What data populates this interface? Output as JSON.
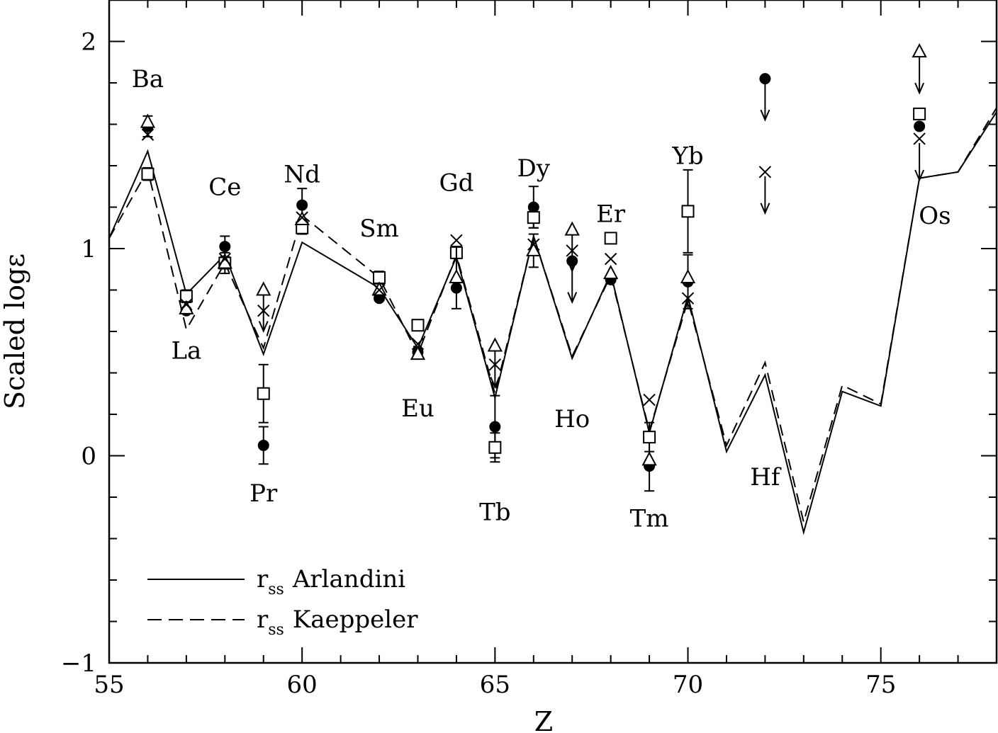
{
  "chart_data": {
    "type": "line",
    "title": "",
    "xlabel": "Z",
    "ylabel": "Scaled logε",
    "xlim": [
      55,
      78
    ],
    "ylim": [
      -1,
      2.2
    ],
    "x_ticks": [
      55,
      60,
      65,
      70,
      75
    ],
    "y_ticks": [
      -1,
      0,
      1,
      2
    ],
    "x_tick_labels": [
      "55",
      "60",
      "65",
      "70",
      "75"
    ],
    "y_tick_labels": [
      "−1",
      "0",
      "1",
      "2"
    ],
    "grid": false,
    "legend": {
      "position": "bottom-left",
      "entries": [
        {
          "main": "r",
          "sub": "ss",
          "text": "Arlandini",
          "style": "solid"
        },
        {
          "main": "r",
          "sub": "ss",
          "text": "Kaeppeler",
          "style": "dashed"
        }
      ]
    },
    "lines": [
      {
        "name": "r_ss Arlandini",
        "style": "solid",
        "x": [
          55,
          56,
          57,
          58,
          59,
          60,
          62,
          63,
          64,
          65,
          66,
          67,
          68,
          69,
          70,
          71,
          72,
          73,
          74,
          75,
          76,
          77,
          78
        ],
        "y": [
          1.05,
          1.47,
          0.78,
          0.97,
          0.49,
          1.03,
          0.81,
          0.52,
          0.96,
          0.28,
          1.06,
          0.47,
          0.88,
          0.11,
          0.77,
          0.02,
          0.39,
          -0.37,
          0.31,
          0.24,
          1.34,
          1.37,
          1.66
        ]
      },
      {
        "name": "r_ss Kaeppeler",
        "style": "dashed",
        "x": [
          55,
          56,
          57,
          58,
          59,
          60,
          62,
          63,
          64,
          65,
          66,
          67,
          68,
          69,
          70,
          71,
          72,
          73,
          74,
          75,
          76,
          77,
          78
        ],
        "y": [
          1.05,
          1.38,
          0.61,
          0.93,
          0.52,
          1.16,
          0.86,
          0.49,
          0.97,
          0.3,
          1.06,
          0.48,
          0.87,
          0.12,
          0.75,
          0.05,
          0.45,
          -0.32,
          0.34,
          0.25,
          1.34,
          1.37,
          1.68
        ]
      }
    ],
    "points": {
      "filled_circle": [
        {
          "x": 56,
          "y": 1.59,
          "err": 0.05
        },
        {
          "x": 57,
          "y": 0.7
        },
        {
          "x": 58,
          "y": 1.01,
          "err": 0.05
        },
        {
          "x": 59,
          "y": 0.05,
          "err": 0.09
        },
        {
          "x": 60,
          "y": 1.21,
          "err": 0.08
        },
        {
          "x": 62,
          "y": 0.76
        },
        {
          "x": 63,
          "y": 0.5
        },
        {
          "x": 64,
          "y": 0.81
        },
        {
          "x": 65,
          "y": 0.14,
          "err": 0.15
        },
        {
          "x": 66,
          "y": 1.2,
          "err": 0.1
        },
        {
          "x": 67,
          "y": 0.94,
          "upper_limit": true
        },
        {
          "x": 68,
          "y": 0.85
        },
        {
          "x": 69,
          "y": -0.05,
          "err": 0.12
        },
        {
          "x": 70,
          "y": 0.84,
          "err": 0.13
        },
        {
          "x": 72,
          "y": 1.82,
          "upper_limit": true
        },
        {
          "x": 76,
          "y": 1.59
        }
      ],
      "open_square": [
        {
          "x": 56,
          "y": 1.36,
          "err": 0.03
        },
        {
          "x": 57,
          "y": 0.77,
          "err": 0.03
        },
        {
          "x": 58,
          "y": 0.93,
          "err": 0.05
        },
        {
          "x": 59,
          "y": 0.3,
          "err": 0.14
        },
        {
          "x": 60,
          "y": 1.1,
          "err": 0.03
        },
        {
          "x": 62,
          "y": 0.86,
          "err": 0.03
        },
        {
          "x": 63,
          "y": 0.63,
          "err": 0.02
        },
        {
          "x": 64,
          "y": 0.98,
          "err": 0.02
        },
        {
          "x": 65,
          "y": 0.04,
          "err": 0.07
        },
        {
          "x": 66,
          "y": 1.15,
          "err": 0.05
        },
        {
          "x": 68,
          "y": 1.05,
          "err": 0.02
        },
        {
          "x": 69,
          "y": 0.09,
          "err": 0.07
        },
        {
          "x": 70,
          "y": 1.18,
          "err": 0.2
        },
        {
          "x": 76,
          "y": 1.65
        }
      ],
      "open_triangle": [
        {
          "x": 56,
          "y": 1.61
        },
        {
          "x": 57,
          "y": 0.71
        },
        {
          "x": 58,
          "y": 0.93
        },
        {
          "x": 59,
          "y": 0.8,
          "upper_limit": true
        },
        {
          "x": 60,
          "y": 1.14
        },
        {
          "x": 62,
          "y": 0.8
        },
        {
          "x": 63,
          "y": 0.49
        },
        {
          "x": 64,
          "y": 0.86,
          "err": 0.15
        },
        {
          "x": 65,
          "y": 0.53,
          "upper_limit": true
        },
        {
          "x": 66,
          "y": 0.99,
          "err": 0.08
        },
        {
          "x": 67,
          "y": 1.09,
          "upper_limit": true
        },
        {
          "x": 68,
          "y": 0.88
        },
        {
          "x": 69,
          "y": -0.02
        },
        {
          "x": 70,
          "y": 0.86
        },
        {
          "x": 76,
          "y": 1.95,
          "upper_limit": true
        }
      ],
      "cross": [
        {
          "x": 56,
          "y": 1.55
        },
        {
          "x": 57,
          "y": 0.73
        },
        {
          "x": 58,
          "y": 0.95
        },
        {
          "x": 59,
          "y": 0.7
        },
        {
          "x": 60,
          "y": 1.15
        },
        {
          "x": 62,
          "y": 0.8
        },
        {
          "x": 63,
          "y": 0.54
        },
        {
          "x": 64,
          "y": 1.04
        },
        {
          "x": 65,
          "y": 0.44
        },
        {
          "x": 66,
          "y": 1.02
        },
        {
          "x": 67,
          "y": 0.99
        },
        {
          "x": 68,
          "y": 0.95
        },
        {
          "x": 69,
          "y": 0.27
        },
        {
          "x": 70,
          "y": 0.76
        },
        {
          "x": 72,
          "y": 1.37,
          "upper_limit": true
        },
        {
          "x": 76,
          "y": 1.53,
          "upper_limit": true
        }
      ]
    },
    "element_labels": [
      {
        "text": "Ba",
        "x": 56,
        "y": 1.82
      },
      {
        "text": "La",
        "x": 57,
        "y": 0.51
      },
      {
        "text": "Ce",
        "x": 58,
        "y": 1.3
      },
      {
        "text": "Pr",
        "x": 59,
        "y": -0.18
      },
      {
        "text": "Nd",
        "x": 60,
        "y": 1.36
      },
      {
        "text": "Sm",
        "x": 62,
        "y": 1.1
      },
      {
        "text": "Eu",
        "x": 63,
        "y": 0.23
      },
      {
        "text": "Gd",
        "x": 64,
        "y": 1.32
      },
      {
        "text": "Tb",
        "x": 65,
        "y": -0.27
      },
      {
        "text": "Dy",
        "x": 66,
        "y": 1.39
      },
      {
        "text": "Ho",
        "x": 67,
        "y": 0.18
      },
      {
        "text": "Er",
        "x": 68,
        "y": 1.17
      },
      {
        "text": "Tm",
        "x": 69,
        "y": -0.3
      },
      {
        "text": "Yb",
        "x": 70,
        "y": 1.45
      },
      {
        "text": "Hf",
        "x": 72,
        "y": -0.1
      },
      {
        "text": "Os",
        "x": 76.4,
        "y": 1.16
      }
    ]
  }
}
